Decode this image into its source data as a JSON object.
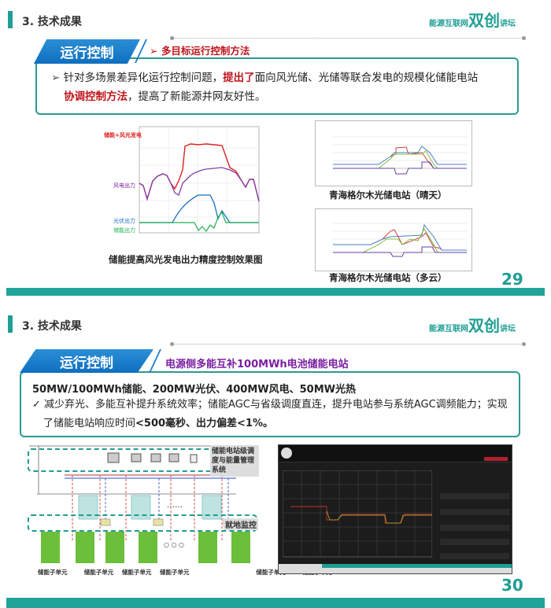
{
  "slide1": {
    "section_title": "3. 技术成果",
    "logo": {
      "small": "能源互联网",
      "big": "双创",
      "tail": "讲坛"
    },
    "tab_label": "运行控制",
    "subtitle": "多目标运行控制方法",
    "body": {
      "p1": "针对多场景差异化运行控制问题，",
      "p2": "提出了",
      "p3": "面向风光储、光储等联合发电的规模化储能电站",
      "p4": "协调控制方法",
      "p5": "，提高了新能源并网友好性。"
    },
    "figure_left": {
      "labels": [
        "储能+风光发电",
        "风电出力",
        "光伏出力",
        "储能出力"
      ],
      "caption": "储能提高风光发电出力精度控制效果图"
    },
    "figure_right_top": {
      "caption": "青海格尔木光储电站（晴天）"
    },
    "figure_right_bottom": {
      "caption": "青海格尔木光储电站（多云）"
    },
    "page_number": "29"
  },
  "slide2": {
    "section_title": "3. 技术成果",
    "logo": {
      "small": "能源互联网",
      "big": "双创",
      "tail": "讲坛"
    },
    "tab_label": "运行控制",
    "subtitle": "电源侧多能互补100MWh电池储能电站",
    "headline": "50MW/100MWh储能、200MW光伏、400MW风电、50MW光热",
    "body": {
      "p1": "减少弃光、多能互补提升系统效率；储能AGC与省级调度直连，提升电站参与系统AGC调频能力；实现了储能电站响应时间",
      "p2": "<500毫秒、出力偏差<1%。"
    },
    "diagram": {
      "top_label": "储能电站级调度与能量管理系统",
      "mid_label": "就地监控",
      "unit_label": "储能子单元",
      "ellipsis": "……",
      "dots": "○ ○ ○"
    },
    "page_number": "30"
  },
  "colors": {
    "teal": "#1f9e94",
    "blue": "#0f6fbf",
    "red": "#c0141c",
    "purple": "#7a1fa0"
  }
}
